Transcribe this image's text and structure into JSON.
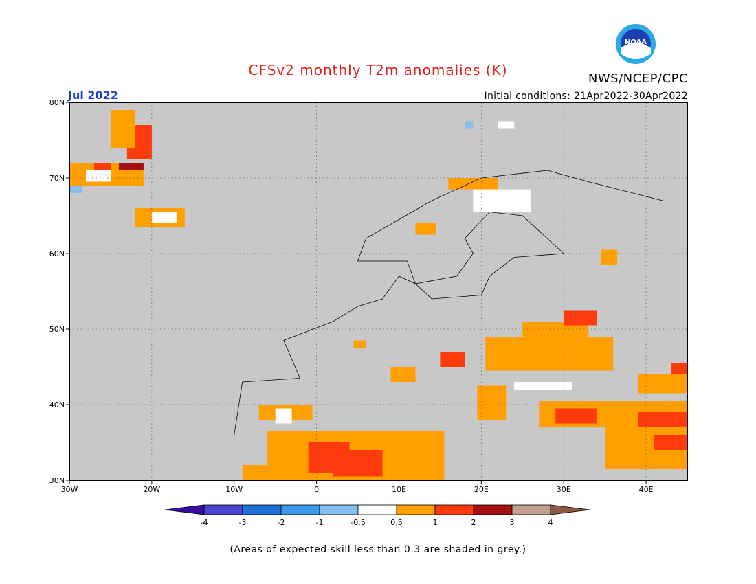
{
  "header": {
    "title": "CFSv2 monthly T2m anomalies (K)",
    "agency": "NWS/NCEP/CPC",
    "month": "Jul 2022",
    "initial_conditions": "Initial conditions: 21Apr2022-30Apr2022"
  },
  "logo": {
    "icon": "noaa-logo-icon",
    "text": "NOAA"
  },
  "map": {
    "lon_range": [
      -30,
      45
    ],
    "lat_range": [
      30,
      80
    ],
    "background_color": "#c8c8c8",
    "grid": "dotted",
    "lat_ticks": [
      "30N",
      "40N",
      "50N",
      "60N",
      "70N",
      "80N"
    ],
    "lon_ticks": [
      "30W",
      "20W",
      "10W",
      "0",
      "10E",
      "20E",
      "30E",
      "40E"
    ]
  },
  "colorbar": {
    "labels": [
      "-4",
      "-3",
      "-2",
      "-1",
      "-0.5",
      "0.5",
      "1",
      "2",
      "3",
      "4"
    ],
    "colors": [
      "#3a0aa5",
      "#4a45d0",
      "#1f6fd8",
      "#3e97e8",
      "#84bff0",
      "#ffffff",
      "#ff9f00",
      "#ff3a0c",
      "#a50f0f",
      "#c29e8e",
      "#8b5a45"
    ]
  },
  "footnote": "(Areas of expected skill less than 0.3 are shaded in grey.)"
}
